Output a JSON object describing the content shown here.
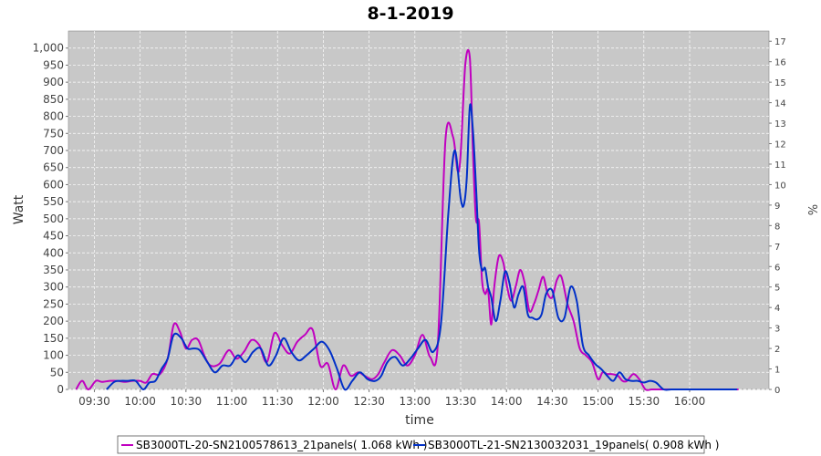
{
  "chart_data": {
    "type": "line",
    "title": "8-1-2019",
    "xlabel": "time",
    "ylabel": "Watt",
    "y2label": "%",
    "ylim": [
      0,
      1050
    ],
    "y2lim": [
      0,
      17.5
    ],
    "xlim": [
      "09:13",
      "16:52"
    ],
    "x_ticks": [
      "09:30",
      "10:00",
      "10:30",
      "11:00",
      "11:30",
      "12:00",
      "12:30",
      "13:00",
      "13:30",
      "14:00",
      "14:30",
      "15:00",
      "15:30",
      "16:00"
    ],
    "y_ticks": [
      "0",
      "50",
      "100",
      "150",
      "200",
      "250",
      "300",
      "350",
      "400",
      "450",
      "500",
      "550",
      "600",
      "650",
      "700",
      "750",
      "800",
      "850",
      "900",
      "950",
      "1,000"
    ],
    "y2_ticks": [
      "0",
      "1",
      "2",
      "3",
      "4",
      "5",
      "6",
      "7",
      "8",
      "9",
      "10",
      "11",
      "12",
      "13",
      "14",
      "15",
      "16",
      "17"
    ],
    "grid": true,
    "legend_position": "bottom",
    "series": [
      {
        "name": "SB3000TL-20-SN2100578613_21panels( 1.068 kWh )",
        "color": "#c000c0",
        "x": [
          "09:18",
          "09:22",
          "09:26",
          "09:31",
          "09:35",
          "09:40",
          "09:45",
          "09:50",
          "09:55",
          "10:00",
          "10:04",
          "10:08",
          "10:13",
          "10:18",
          "10:22",
          "10:26",
          "10:30",
          "10:34",
          "10:38",
          "10:42",
          "10:46",
          "10:52",
          "10:58",
          "11:03",
          "11:08",
          "11:13",
          "11:18",
          "11:23",
          "11:28",
          "11:33",
          "11:38",
          "11:43",
          "11:48",
          "11:53",
          "11:58",
          "12:03",
          "12:08",
          "12:13",
          "12:18",
          "12:23",
          "12:27",
          "12:32",
          "12:36",
          "12:40",
          "12:45",
          "12:50",
          "12:55",
          "13:00",
          "13:05",
          "13:10",
          "13:15",
          "13:20",
          "13:25",
          "13:28",
          "13:30",
          "13:33",
          "13:36",
          "13:38",
          "13:40",
          "13:42",
          "13:44",
          "13:46",
          "13:48",
          "13:50",
          "13:52",
          "13:55",
          "13:58",
          "14:00",
          "14:03",
          "14:06",
          "14:09",
          "14:12",
          "14:15",
          "14:18",
          "14:21",
          "14:24",
          "14:27",
          "14:30",
          "14:33",
          "14:36",
          "14:40",
          "14:44",
          "14:48",
          "14:52",
          "14:56",
          "15:00",
          "15:03",
          "15:06",
          "15:09",
          "15:13",
          "15:16",
          "15:19",
          "15:23",
          "15:27",
          "15:31",
          "15:35",
          "15:39",
          "15:43",
          "15:47",
          "15:52",
          "15:57",
          "16:02",
          "16:07",
          "16:12",
          "16:17",
          "16:22",
          "16:27",
          "16:32"
        ],
        "values": [
          0,
          25,
          0,
          25,
          22,
          25,
          25,
          22,
          25,
          25,
          20,
          45,
          45,
          90,
          190,
          170,
          120,
          145,
          145,
          100,
          70,
          75,
          115,
          90,
          110,
          145,
          130,
          80,
          165,
          130,
          105,
          140,
          160,
          175,
          70,
          75,
          0,
          70,
          40,
          50,
          40,
          30,
          45,
          80,
          115,
          100,
          70,
          100,
          160,
          95,
          130,
          730,
          740,
          640,
          690,
          950,
          970,
          700,
          500,
          490,
          320,
          280,
          290,
          190,
          300,
          390,
          370,
          310,
          260,
          300,
          350,
          310,
          230,
          250,
          290,
          330,
          280,
          270,
          320,
          330,
          250,
          200,
          120,
          100,
          80,
          30,
          50,
          45,
          45,
          40,
          25,
          25,
          45,
          30,
          0,
          0,
          0,
          0,
          0,
          0,
          0,
          0,
          0,
          0,
          0,
          0,
          0,
          0
        ],
        "values_note": ""
      },
      {
        "name": "SB3000TL-21-SN2130032031_19panels( 0.908 kWh )",
        "color": "#0030c8",
        "x": [
          "09:38",
          "09:43",
          "09:47",
          "09:52",
          "09:57",
          "10:02",
          "10:06",
          "10:10",
          "10:14",
          "10:18",
          "10:22",
          "10:27",
          "10:31",
          "10:35",
          "10:39",
          "10:44",
          "10:49",
          "10:54",
          "10:59",
          "11:04",
          "11:09",
          "11:14",
          "11:19",
          "11:24",
          "11:29",
          "11:34",
          "11:39",
          "11:44",
          "11:49",
          "11:54",
          "11:59",
          "12:04",
          "12:09",
          "12:14",
          "12:19",
          "12:24",
          "12:29",
          "12:34",
          "12:38",
          "12:42",
          "12:47",
          "12:52",
          "12:57",
          "13:02",
          "13:07",
          "13:12",
          "13:17",
          "13:22",
          "13:26",
          "13:30",
          "13:32",
          "13:34",
          "13:36",
          "13:38",
          "13:40",
          "13:42",
          "13:44",
          "13:46",
          "13:48",
          "13:50",
          "13:53",
          "13:56",
          "13:59",
          "14:02",
          "14:05",
          "14:08",
          "14:11",
          "14:14",
          "14:17",
          "14:20",
          "14:23",
          "14:26",
          "14:30",
          "14:34",
          "14:38",
          "14:42",
          "14:46",
          "14:50",
          "14:54",
          "14:58",
          "15:02",
          "15:06",
          "15:10",
          "15:14",
          "15:18",
          "15:22",
          "15:26",
          "15:30",
          "15:34",
          "15:38",
          "15:43",
          "15:48",
          "15:53",
          "15:58",
          "16:03",
          "16:08",
          "16:13",
          "16:18",
          "16:23",
          "16:27",
          "16:31"
        ],
        "values": [
          0,
          22,
          25,
          25,
          25,
          0,
          20,
          25,
          60,
          90,
          160,
          150,
          120,
          120,
          115,
          80,
          50,
          70,
          70,
          100,
          80,
          110,
          120,
          70,
          100,
          150,
          110,
          85,
          100,
          120,
          140,
          115,
          60,
          0,
          25,
          50,
          30,
          25,
          40,
          80,
          95,
          70,
          90,
          120,
          145,
          110,
          190,
          520,
          700,
          560,
          540,
          620,
          830,
          760,
          600,
          410,
          350,
          355,
          300,
          270,
          200,
          260,
          345,
          310,
          240,
          280,
          300,
          220,
          210,
          205,
          220,
          280,
          290,
          210,
          210,
          300,
          260,
          130,
          100,
          75,
          60,
          40,
          25,
          50,
          30,
          25,
          25,
          20,
          25,
          20,
          0,
          0,
          0,
          0,
          0,
          0,
          0,
          0,
          0,
          0,
          0
        ],
        "values_note": ""
      }
    ]
  }
}
